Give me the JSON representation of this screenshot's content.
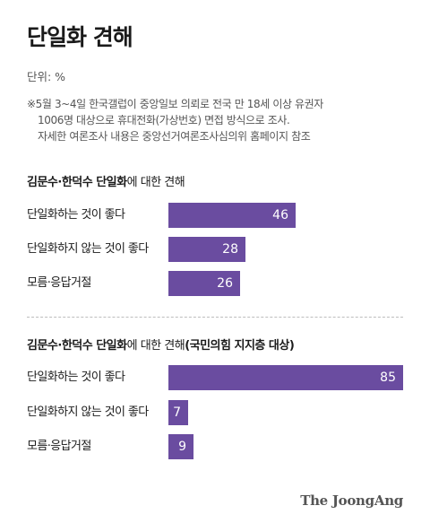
{
  "header": {
    "title": "단일화 견해",
    "unit": "단위: %",
    "note_lines": [
      "※5월 3~4일 한국갤럽이 중앙일보 의뢰로 전국 만 18세 이상 유권자",
      "1006명 대상으로 휴대전화(가상번호) 면접 방식으로 조사.",
      "자세한 여론조사 내용은 중앙선거여론조사심의위 홈페이지 참조"
    ]
  },
  "chart_data": [
    {
      "type": "bar",
      "orientation": "horizontal",
      "title_bold": "김문수·한덕수 단일화",
      "title_rest": "에 대한 견해",
      "categories": [
        "단일화하는 것이 좋다",
        "단일화하지 않는 것이 좋다",
        "모름·응답거절"
      ],
      "values": [
        46,
        28,
        26
      ],
      "xlim": [
        0,
        85
      ],
      "bar_color": "#6a4ca0"
    },
    {
      "type": "bar",
      "orientation": "horizontal",
      "title_bold": "김문수·한덕수 단일화",
      "title_rest": "에 대한 견해",
      "title_suffix": "(국민의힘 지지층 대상)",
      "categories": [
        "단일화하는 것이 좋다",
        "단일화하지 않는 것이 좋다",
        "모름·응답거절"
      ],
      "values": [
        85,
        7,
        9
      ],
      "xlim": [
        0,
        85
      ],
      "bar_color": "#6a4ca0"
    }
  ],
  "footer": {
    "brand": "The JoongAng"
  }
}
